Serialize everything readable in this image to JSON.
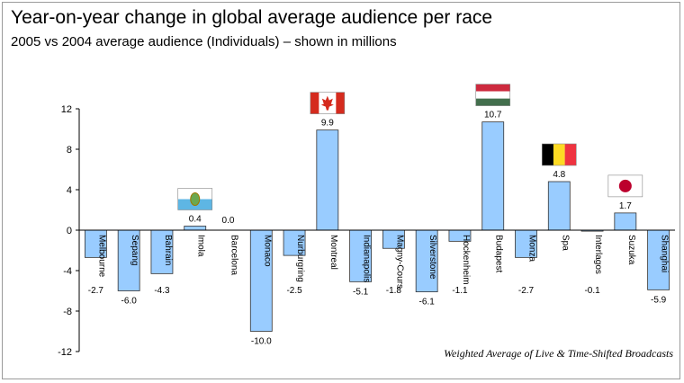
{
  "title": "Year-on-year change in global average audience per race",
  "subtitle": "2005 vs 2004 average audience (Individuals) – shown in millions",
  "footnote": "Weighted Average of Live & Time-Shifted Broadcasts",
  "colors": {
    "bar_fill": "#99ccff",
    "bar_stroke": "#333333",
    "axis": "#000000",
    "background": "#ffffff"
  },
  "chart_data": {
    "type": "bar",
    "categories": [
      "Melbourne",
      "Sepang",
      "Bahrain",
      "Imola",
      "Barcelona",
      "Monaco",
      "Nurburgring",
      "Montreal",
      "Indianapolis",
      "Magny-Cours",
      "Silverstone",
      "Hockenheim",
      "Budapest",
      "Monza",
      "Spa",
      "Interlagos",
      "Suzuka",
      "Shanghai"
    ],
    "values": [
      -2.7,
      -6.0,
      -4.3,
      0.4,
      0.0,
      -10.0,
      -2.5,
      9.9,
      -5.1,
      -1.8,
      -6.1,
      -1.1,
      10.7,
      -2.7,
      4.8,
      -0.1,
      1.7,
      -5.9
    ],
    "data_labels": [
      "-2.7",
      "-6.0",
      "-4.3",
      "0.4",
      "0.0",
      "-10.0",
      "-2.5",
      "9.9",
      "-5.1",
      "-1.8",
      "-6.1",
      "-1.1",
      "10.7",
      "-2.7",
      "4.8",
      "-0.1",
      "1.7",
      "-5.9"
    ],
    "ylim": [
      -12,
      12
    ],
    "yticks": [
      -12,
      -8,
      -4,
      0,
      4,
      8,
      12
    ],
    "ytick_labels": [
      "-12",
      "-8",
      "-4",
      "0",
      "4",
      "8",
      "12"
    ],
    "xlabel": "",
    "ylabel": "",
    "grid": false,
    "legend": "none",
    "flags": [
      {
        "category": "Imola",
        "name": "san-marino-flag"
      },
      {
        "category": "Montreal",
        "name": "canada-flag"
      },
      {
        "category": "Budapest",
        "name": "hungary-flag"
      },
      {
        "category": "Spa",
        "name": "belgium-flag"
      },
      {
        "category": "Suzuka",
        "name": "japan-flag"
      }
    ]
  }
}
